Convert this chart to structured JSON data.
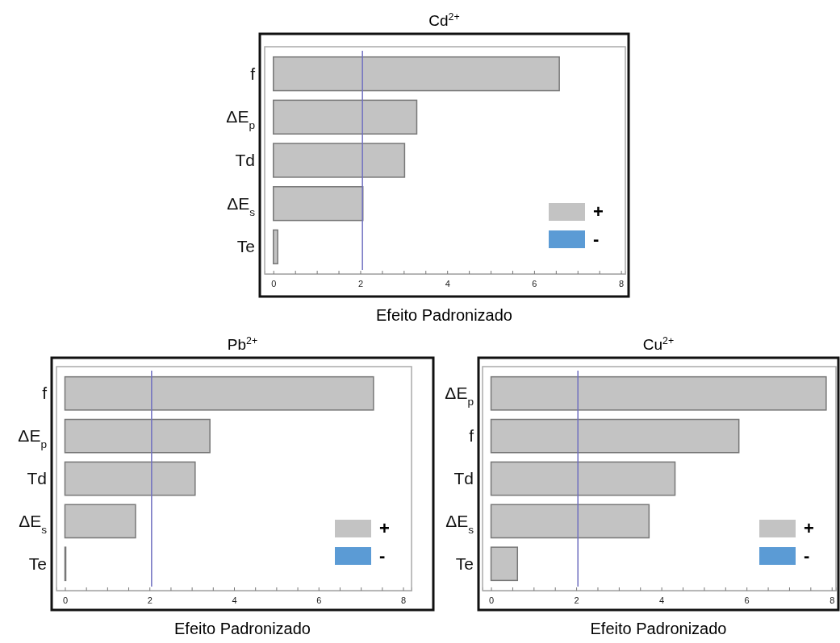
{
  "chart_data": [
    {
      "type": "bar",
      "orientation": "horizontal",
      "title": "Cd$^{2+}$",
      "xlabel": "Efeito Padronizado",
      "categories": [
        "f",
        "ΔE$_{p}$",
        "Td",
        "ΔE$_{s}$",
        "Te"
      ],
      "series": [
        {
          "name": "+",
          "color": "#c3c3c3",
          "values": [
            6.58,
            3.3,
            3.02,
            2.06,
            0.1
          ]
        },
        {
          "name": "-",
          "color": "#5b9bd5",
          "values": [
            null,
            null,
            null,
            null,
            null
          ]
        }
      ],
      "xlim": [
        -0.2,
        8.1
      ],
      "xticks": [
        0,
        {
          "value": 0.5,
          "label": null
        },
        {
          "value": 1,
          "label": null
        },
        {
          "value": 1.5,
          "label": null
        },
        2,
        {
          "value": 2.5,
          "label": null
        },
        {
          "value": 3,
          "label": null
        },
        {
          "value": 3.5,
          "label": null
        },
        4,
        {
          "value": 4.5,
          "label": null
        },
        {
          "value": 5,
          "label": null
        },
        {
          "value": 5.5,
          "label": null
        },
        6,
        {
          "value": 6.5,
          "label": null
        },
        {
          "value": 7,
          "label": null
        },
        {
          "value": 7.5,
          "label": null
        },
        8
      ],
      "ref_lines": [
        {
          "axis": "x",
          "value": 2.05,
          "color": "#7070c0"
        }
      ],
      "legend": "bottom right",
      "grid": false
    },
    {
      "type": "bar",
      "orientation": "horizontal",
      "title": "Pb$^{2+}$",
      "xlabel": "Efeito Padronizado",
      "categories": [
        "f",
        "ΔE$_{p}$",
        "Td",
        "ΔE$_{s}$",
        "Te"
      ],
      "series": [
        {
          "name": "+",
          "color": "#c3c3c3",
          "values": [
            7.3,
            3.43,
            3.08,
            1.67,
            0.02
          ]
        },
        {
          "name": "-",
          "color": "#5b9bd5",
          "values": [
            null,
            null,
            null,
            null,
            null
          ]
        }
      ],
      "xlim": [
        -0.2,
        8.2
      ],
      "xticks": [
        0,
        {
          "value": 0.5,
          "label": null
        },
        {
          "value": 1,
          "label": null
        },
        {
          "value": 1.5,
          "label": null
        },
        2,
        {
          "value": 2.5,
          "label": null
        },
        {
          "value": 3,
          "label": null
        },
        {
          "value": 3.5,
          "label": null
        },
        4,
        {
          "value": 4.5,
          "label": null
        },
        {
          "value": 5,
          "label": null
        },
        {
          "value": 5.5,
          "label": null
        },
        6,
        {
          "value": 6.5,
          "label": null
        },
        {
          "value": 7,
          "label": null
        },
        {
          "value": 7.5,
          "label": null
        },
        8
      ],
      "ref_lines": [
        {
          "axis": "x",
          "value": 2.05,
          "color": "#7070c0"
        }
      ],
      "legend": "bottom right",
      "grid": false
    },
    {
      "type": "bar",
      "orientation": "horizontal",
      "title": "Cu$^{2+}$",
      "xlabel": "Efeito Padronizado",
      "categories": [
        "ΔE$_{p}$",
        "f",
        "Td",
        "ΔE$_{s}$",
        "Te"
      ],
      "series": [
        {
          "name": "+",
          "color": "#c3c3c3",
          "values": [
            7.87,
            5.82,
            4.32,
            3.71,
            0.62
          ]
        },
        {
          "name": "-",
          "color": "#5b9bd5",
          "values": [
            null,
            null,
            null,
            null,
            null
          ]
        }
      ],
      "xlim": [
        -0.2,
        8.1
      ],
      "xticks": [
        0,
        {
          "value": 0.5,
          "label": null
        },
        {
          "value": 1,
          "label": null
        },
        {
          "value": 1.5,
          "label": null
        },
        2,
        {
          "value": 2.5,
          "label": null
        },
        {
          "value": 3,
          "label": null
        },
        {
          "value": 3.5,
          "label": null
        },
        4,
        {
          "value": 4.5,
          "label": null
        },
        {
          "value": 5,
          "label": null
        },
        {
          "value": 5.5,
          "label": null
        },
        6,
        {
          "value": 6.5,
          "label": null
        },
        {
          "value": 7,
          "label": null
        },
        {
          "value": 7.5,
          "label": null
        },
        8
      ],
      "ref_lines": [
        {
          "axis": "x",
          "value": 2.04,
          "color": "#7070c0"
        }
      ],
      "legend": "bottom right",
      "grid": false
    }
  ]
}
